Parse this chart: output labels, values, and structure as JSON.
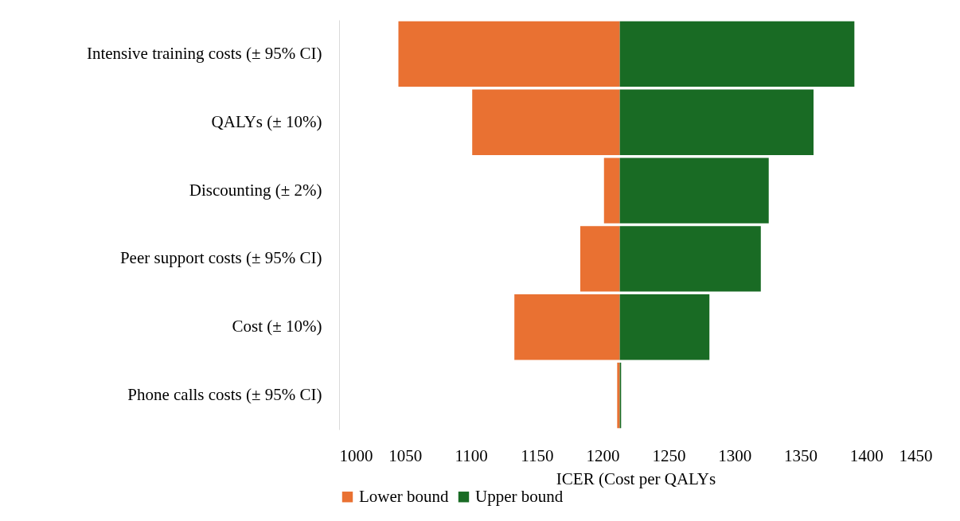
{
  "chart_data": {
    "type": "bar",
    "orientation": "horizontal",
    "categories": [
      "Intensive training costs (± 95% CI)",
      "QALYs (± 10%)",
      "Discounting (± 2%)",
      "Peer support costs (± 95% CI)",
      "Cost (± 10%)",
      "Phone calls costs (± 95% CI)"
    ],
    "series": [
      {
        "name": "Lower bound",
        "color": "#e97132",
        "base": [
          1045,
          1101,
          1201,
          1183,
          1133,
          1211
        ],
        "values": [
          168,
          112,
          12,
          30,
          80,
          2
        ]
      },
      {
        "name": "Upper bound",
        "color": "#196b24",
        "base": [
          1213,
          1213,
          1213,
          1213,
          1213,
          1213
        ],
        "values": [
          178,
          147,
          113,
          107,
          68,
          1
        ]
      }
    ],
    "xlabel": "ICER (Cost per QALYs",
    "xlim": [
      1000,
      1450
    ],
    "xticks": [
      1000,
      1050,
      1100,
      1150,
      1200,
      1250,
      1300,
      1350,
      1400,
      1450
    ],
    "grid": false,
    "legend": "bottom"
  }
}
